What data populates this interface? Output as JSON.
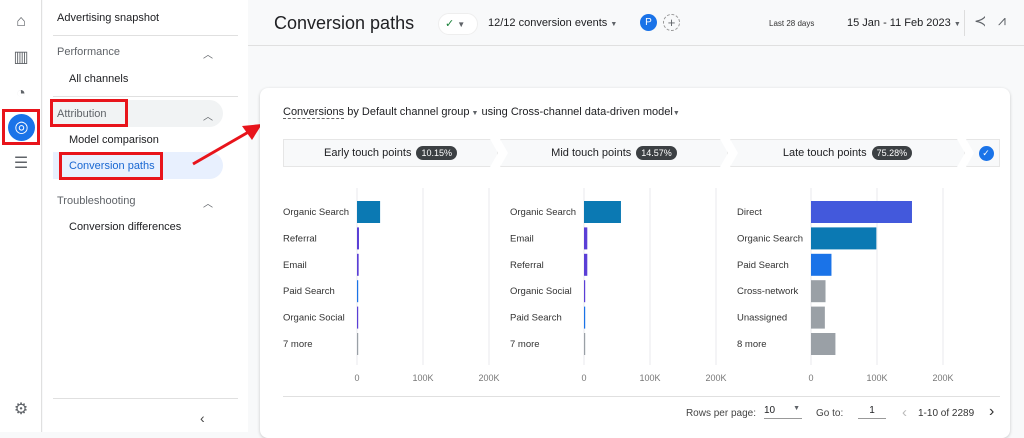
{
  "rail": {
    "icons": [
      "home-icon",
      "bar-chart-icon",
      "trend-icon",
      "advertising-icon",
      "list-icon",
      "gear-icon"
    ]
  },
  "sidebar": {
    "top": "Advertising snapshot",
    "sections": [
      {
        "label": "Performance",
        "items": [
          "All channels"
        ]
      },
      {
        "label": "Attribution",
        "items": [
          "Model comparison",
          "Conversion paths"
        ]
      },
      {
        "label": "Troubleshooting",
        "items": [
          "Conversion differences"
        ]
      }
    ],
    "selected": "Conversion paths"
  },
  "header": {
    "title": "Conversion paths",
    "events": "12/12 conversion events",
    "avatar": "P",
    "range_label": "Last 28 days",
    "range": "15 Jan - 11 Feb 2023"
  },
  "card": {
    "subtitle_metric": "Conversions",
    "subtitle_by": "by",
    "subtitle_dim": "Default channel group",
    "subtitle_using": "using",
    "subtitle_model": "Cross-channel data-driven model"
  },
  "steps": [
    {
      "label": "Early touch points",
      "pct": "10.15%"
    },
    {
      "label": "Mid touch points",
      "pct": "14.57%"
    },
    {
      "label": "Late touch points",
      "pct": "75.28%"
    }
  ],
  "colors": {
    "organic_search": "#0b79b3",
    "direct": "#4359dc",
    "paid_search": "#1a73e8",
    "purple": "#5a3fd6",
    "gray": "#9aa0a6",
    "accent": "#1a73e8",
    "annotation": "#e8141b"
  },
  "chart_data": [
    {
      "type": "bar",
      "orientation": "horizontal",
      "categories": [
        "Organic Search",
        "Referral",
        "Email",
        "Paid Search",
        "Organic Social",
        "7 more"
      ],
      "values": [
        35000,
        3000,
        2500,
        1000,
        500,
        1000
      ],
      "colors": [
        "organic_search",
        "purple",
        "purple",
        "paid_search",
        "purple",
        "gray"
      ],
      "xticks": [
        "0",
        "100K",
        "200K"
      ],
      "xlim": [
        0,
        200000
      ],
      "grid": true
    },
    {
      "type": "bar",
      "orientation": "horizontal",
      "categories": [
        "Organic Search",
        "Email",
        "Referral",
        "Organic Social",
        "Paid Search",
        "7 more"
      ],
      "values": [
        56000,
        5000,
        5000,
        1500,
        300,
        300
      ],
      "colors": [
        "organic_search",
        "purple",
        "purple",
        "purple",
        "paid_search",
        "gray"
      ],
      "xticks": [
        "0",
        "100K",
        "200K"
      ],
      "xlim": [
        0,
        200000
      ],
      "grid": true
    },
    {
      "type": "bar",
      "orientation": "horizontal",
      "categories": [
        "Direct",
        "Organic Search",
        "Paid Search",
        "Cross-network",
        "Unassigned",
        "8 more"
      ],
      "values": [
        153000,
        99000,
        31000,
        22000,
        21000,
        37000
      ],
      "colors": [
        "direct",
        "organic_search",
        "paid_search",
        "gray",
        "gray",
        "gray"
      ],
      "xticks": [
        "0",
        "100K",
        "200K"
      ],
      "xlim": [
        0,
        200000
      ],
      "grid": true
    }
  ],
  "pagination": {
    "rows_label": "Rows per page:",
    "rows": "10",
    "goto_label": "Go to:",
    "goto": "1",
    "range": "1-10 of 2289"
  }
}
